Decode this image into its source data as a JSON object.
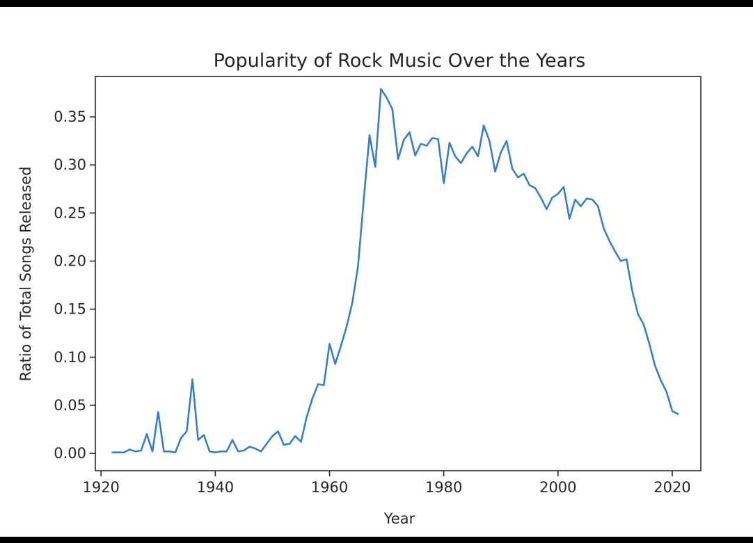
{
  "chart_data": {
    "type": "line",
    "title": "Popularity of Rock Music Over the Years",
    "xlabel": "Year",
    "ylabel": "Ratio of Total Songs Released",
    "xlim": [
      1919,
      2025
    ],
    "ylim": [
      -0.018,
      0.392
    ],
    "xticks": [
      1920,
      1940,
      1960,
      1980,
      2000,
      2020
    ],
    "xtick_labels": [
      "1920",
      "1940",
      "1960",
      "1980",
      "2000",
      "2020"
    ],
    "yticks": [
      0.0,
      0.05,
      0.1,
      0.15,
      0.2,
      0.25,
      0.3,
      0.35
    ],
    "ytick_labels": [
      "0.00",
      "0.05",
      "0.10",
      "0.15",
      "0.20",
      "0.25",
      "0.30",
      "0.35"
    ],
    "grid": false,
    "series": [
      {
        "color": "#3a7fbf",
        "x": [
          1922,
          1923,
          1924,
          1925,
          1926,
          1927,
          1928,
          1929,
          1930,
          1931,
          1932,
          1933,
          1934,
          1935,
          1936,
          1937,
          1938,
          1939,
          1940,
          1941,
          1942,
          1943,
          1944,
          1945,
          1946,
          1947,
          1948,
          1949,
          1950,
          1951,
          1952,
          1953,
          1954,
          1955,
          1956,
          1957,
          1958,
          1959,
          1960,
          1961,
          1962,
          1963,
          1964,
          1965,
          1966,
          1967,
          1968,
          1969,
          1970,
          1971,
          1972,
          1973,
          1974,
          1975,
          1976,
          1977,
          1978,
          1979,
          1980,
          1981,
          1982,
          1983,
          1984,
          1985,
          1986,
          1987,
          1988,
          1989,
          1990,
          1991,
          1992,
          1993,
          1994,
          1995,
          1996,
          1997,
          1998,
          1999,
          2000,
          2001,
          2002,
          2003,
          2004,
          2005,
          2006,
          2007,
          2008,
          2009,
          2010,
          2011,
          2012,
          2013,
          2014,
          2015,
          2016,
          2017,
          2018,
          2019,
          2020,
          2021
        ],
        "y": [
          0.001,
          0.001,
          0.001,
          0.004,
          0.002,
          0.003,
          0.02,
          0.002,
          0.043,
          0.002,
          0.002,
          0.001,
          0.016,
          0.023,
          0.077,
          0.014,
          0.019,
          0.002,
          0.001,
          0.002,
          0.002,
          0.014,
          0.002,
          0.003,
          0.007,
          0.005,
          0.002,
          0.01,
          0.018,
          0.023,
          0.009,
          0.01,
          0.018,
          0.012,
          0.038,
          0.057,
          0.072,
          0.071,
          0.114,
          0.093,
          0.112,
          0.132,
          0.157,
          0.195,
          0.265,
          0.331,
          0.298,
          0.379,
          0.37,
          0.358,
          0.306,
          0.326,
          0.334,
          0.31,
          0.322,
          0.32,
          0.328,
          0.327,
          0.281,
          0.323,
          0.309,
          0.302,
          0.312,
          0.319,
          0.309,
          0.341,
          0.325,
          0.293,
          0.313,
          0.325,
          0.296,
          0.287,
          0.291,
          0.279,
          0.276,
          0.266,
          0.254,
          0.266,
          0.27,
          0.277,
          0.244,
          0.264,
          0.257,
          0.265,
          0.264,
          0.257,
          0.234,
          0.221,
          0.21,
          0.2,
          0.202,
          0.169,
          0.145,
          0.134,
          0.114,
          0.091,
          0.076,
          0.064,
          0.044,
          0.041
        ]
      }
    ]
  }
}
